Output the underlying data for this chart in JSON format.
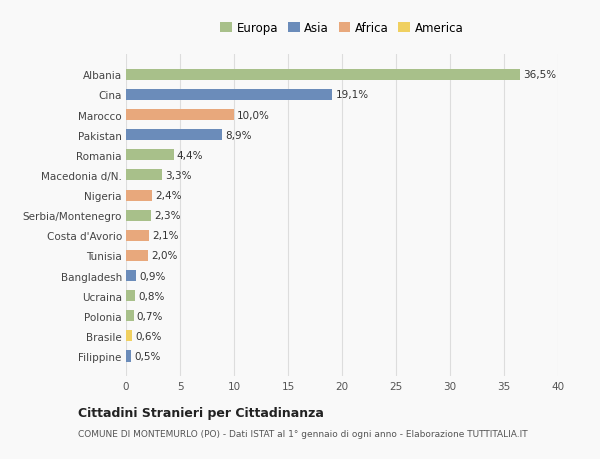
{
  "countries": [
    "Albania",
    "Cina",
    "Marocco",
    "Pakistan",
    "Romania",
    "Macedonia d/N.",
    "Nigeria",
    "Serbia/Montenegro",
    "Costa d'Avorio",
    "Tunisia",
    "Bangladesh",
    "Ucraina",
    "Polonia",
    "Brasile",
    "Filippine"
  ],
  "values": [
    36.5,
    19.1,
    10.0,
    8.9,
    4.4,
    3.3,
    2.4,
    2.3,
    2.1,
    2.0,
    0.9,
    0.8,
    0.7,
    0.6,
    0.5
  ],
  "labels": [
    "36,5%",
    "19,1%",
    "10,0%",
    "8,9%",
    "4,4%",
    "3,3%",
    "2,4%",
    "2,3%",
    "2,1%",
    "2,0%",
    "0,9%",
    "0,8%",
    "0,7%",
    "0,6%",
    "0,5%"
  ],
  "regions": [
    "Europa",
    "Asia",
    "Africa",
    "Asia",
    "Europa",
    "Europa",
    "Africa",
    "Europa",
    "Africa",
    "Africa",
    "Asia",
    "Europa",
    "Europa",
    "America",
    "Asia"
  ],
  "colors": {
    "Europa": "#a8c08a",
    "Asia": "#6b8cba",
    "Africa": "#e8a87c",
    "America": "#f0d060"
  },
  "legend_order": [
    "Europa",
    "Asia",
    "Africa",
    "America"
  ],
  "xlim": [
    0,
    40
  ],
  "xticks": [
    0,
    5,
    10,
    15,
    20,
    25,
    30,
    35,
    40
  ],
  "title": "Cittadini Stranieri per Cittadinanza",
  "subtitle": "COMUNE DI MONTEMURLO (PO) - Dati ISTAT al 1° gennaio di ogni anno - Elaborazione TUTTITALIA.IT",
  "bg_color": "#f9f9f9",
  "grid_color": "#dddddd"
}
